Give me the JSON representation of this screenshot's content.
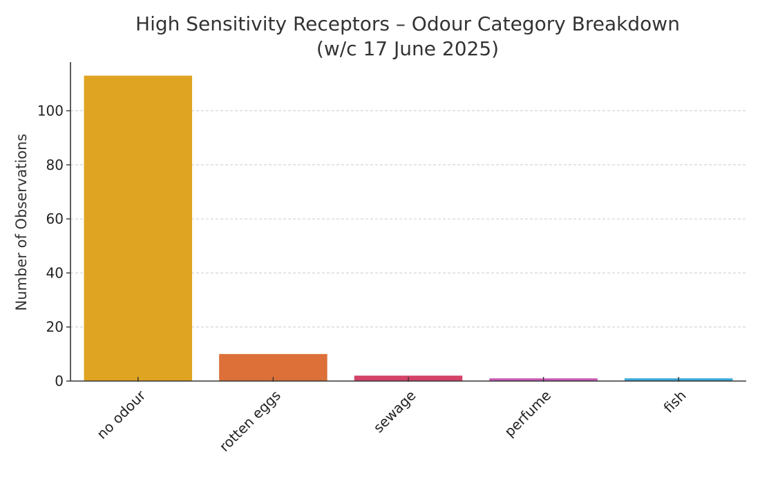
{
  "chart_data": {
    "type": "bar",
    "title": "High Sensitivity Receptors – Odour Category Breakdown",
    "subtitle": "(w/c 17 June 2025)",
    "xlabel": "",
    "ylabel": "Number of Observations",
    "categories": [
      "no odour",
      "rotten eggs",
      "sewage",
      "perfume",
      "fish"
    ],
    "values": [
      113,
      10,
      2,
      1,
      1
    ],
    "colors": [
      "#DFA421",
      "#DC7038",
      "#D44267",
      "#C85BB6",
      "#3AA9D8"
    ],
    "ylim": [
      0,
      118
    ],
    "yticks": [
      0,
      20,
      40,
      60,
      80,
      100
    ],
    "ytick_labels": [
      "0",
      "20",
      "40",
      "60",
      "80",
      "100"
    ],
    "grid": "y-dashed",
    "legend": "none"
  }
}
